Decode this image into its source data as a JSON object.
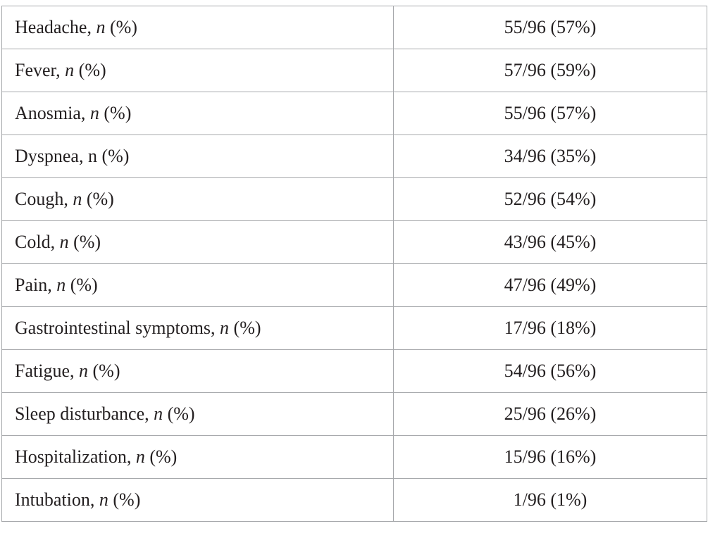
{
  "table": {
    "rows": [
      {
        "name": "Headache",
        "sep": ", ",
        "n": "n",
        "n_italic": true,
        "pct": " (%)",
        "value": "55/96 (57%)"
      },
      {
        "name": "Fever",
        "sep": ", ",
        "n": "n",
        "n_italic": true,
        "pct": " (%)",
        "value": "57/96 (59%)"
      },
      {
        "name": "Anosmia",
        "sep": ", ",
        "n": "n",
        "n_italic": true,
        "pct": " (%)",
        "value": "55/96 (57%)"
      },
      {
        "name": "Dyspnea",
        "sep": ", ",
        "n": "n",
        "n_italic": false,
        "pct": " (%)",
        "value": "34/96 (35%)"
      },
      {
        "name": "Cough",
        "sep": ", ",
        "n": "n",
        "n_italic": true,
        "pct": " (%)",
        "value": "52/96 (54%)"
      },
      {
        "name": "Cold",
        "sep": ", ",
        "n": "n",
        "n_italic": true,
        "pct": " (%)",
        "value": "43/96 (45%)"
      },
      {
        "name": "Pain",
        "sep": ", ",
        "n": "n",
        "n_italic": true,
        "pct": " (%)",
        "value": "47/96 (49%)"
      },
      {
        "name": "Gastrointestinal symptoms",
        "sep": ", ",
        "n": "n",
        "n_italic": true,
        "pct": " (%)",
        "value": "17/96 (18%)"
      },
      {
        "name": "Fatigue",
        "sep": ", ",
        "n": "n",
        "n_italic": true,
        "pct": " (%)",
        "value": "54/96 (56%)"
      },
      {
        "name": "Sleep disturbance",
        "sep": ", ",
        "n": "n",
        "n_italic": true,
        "pct": " (%)",
        "value": "25/96 (26%)"
      },
      {
        "name": "Hospitalization",
        "sep": ", ",
        "n": "n",
        "n_italic": true,
        "pct": " (%)",
        "value": "15/96 (16%)"
      },
      {
        "name": "Intubation",
        "sep": ", ",
        "n": "n",
        "n_italic": true,
        "pct": " (%)",
        "value": "1/96 (1%)"
      }
    ]
  }
}
